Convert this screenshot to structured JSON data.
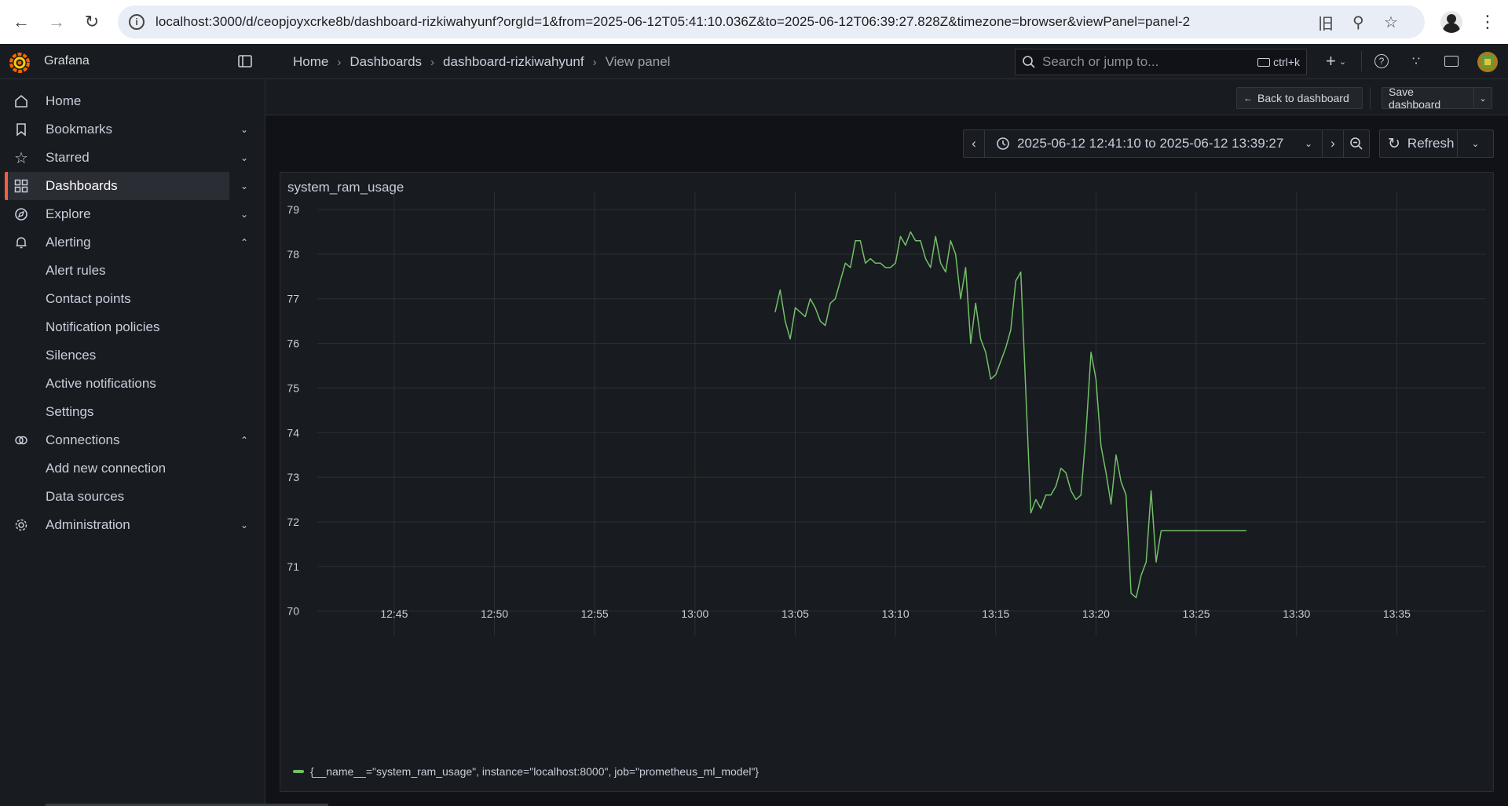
{
  "browser": {
    "url": "localhost:3000/d/ceopjoyxcrke8b/dashboard-rizkiwahyunf?orgId=1&from=2025-06-12T05:41:10.036Z&to=2025-06-12T06:39:27.828Z&timezone=browser&viewPanel=panel-2"
  },
  "app": {
    "name": "Grafana",
    "breadcrumb": [
      "Home",
      "Dashboards",
      "dashboard-rizkiwahyunf",
      "View panel"
    ],
    "search_placeholder": "Search or jump to...",
    "search_shortcut": "ctrl+k"
  },
  "sidebar": {
    "items": [
      {
        "label": "Home",
        "icon": "home-icon"
      },
      {
        "label": "Bookmarks",
        "icon": "bookmark-icon"
      },
      {
        "label": "Starred",
        "icon": "star-icon"
      },
      {
        "label": "Dashboards",
        "icon": "apps-icon"
      },
      {
        "label": "Explore",
        "icon": "compass-icon"
      },
      {
        "label": "Alerting",
        "icon": "bell-icon"
      },
      {
        "label": "Connections",
        "icon": "plug-icon"
      },
      {
        "label": "Administration",
        "icon": "cog-icon"
      }
    ],
    "alerting_sub": [
      "Alert rules",
      "Contact points",
      "Notification policies",
      "Silences",
      "Active notifications",
      "Settings"
    ],
    "connections_sub": [
      "Add new connection",
      "Data sources"
    ]
  },
  "toolbar": {
    "back_label": "Back to dashboard",
    "save_label": "Save dashboard",
    "time_range": "2025-06-12 12:41:10 to 2025-06-12 13:39:27",
    "refresh_label": "Refresh"
  },
  "panel": {
    "title": "system_ram_usage",
    "legend": "{__name__=\"system_ram_usage\", instance=\"localhost:8000\", job=\"prometheus_ml_model\"}"
  },
  "colors": {
    "accent": "#f55f3e",
    "series": "#73bf69"
  },
  "chart_data": {
    "type": "line",
    "title": "system_ram_usage",
    "xlabel": "",
    "ylabel": "",
    "x_range": [
      "12:41:10",
      "13:39:27"
    ],
    "ylim": [
      69.8,
      79.3
    ],
    "y_ticks": [
      70,
      71,
      72,
      73,
      74,
      75,
      76,
      77,
      78,
      79
    ],
    "x_ticks": [
      "12:45",
      "12:50",
      "12:55",
      "13:00",
      "13:05",
      "13:10",
      "13:15",
      "13:20",
      "13:25",
      "13:30",
      "13:35"
    ],
    "grid": true,
    "legend_position": "bottom-left",
    "series": [
      {
        "name": "{__name__=\"system_ram_usage\", instance=\"localhost:8000\", job=\"prometheus_ml_model\"}",
        "points": [
          [
            "13:04:00",
            76.7
          ],
          [
            "13:04:15",
            77.2
          ],
          [
            "13:04:30",
            76.5
          ],
          [
            "13:04:45",
            76.1
          ],
          [
            "13:05:00",
            76.8
          ],
          [
            "13:05:15",
            76.7
          ],
          [
            "13:05:30",
            76.6
          ],
          [
            "13:05:45",
            77.0
          ],
          [
            "13:06:00",
            76.8
          ],
          [
            "13:06:15",
            76.5
          ],
          [
            "13:06:30",
            76.4
          ],
          [
            "13:06:45",
            76.9
          ],
          [
            "13:07:00",
            77.0
          ],
          [
            "13:07:15",
            77.4
          ],
          [
            "13:07:30",
            77.8
          ],
          [
            "13:07:45",
            77.7
          ],
          [
            "13:08:00",
            78.3
          ],
          [
            "13:08:15",
            78.3
          ],
          [
            "13:08:30",
            77.8
          ],
          [
            "13:08:45",
            77.9
          ],
          [
            "13:09:00",
            77.8
          ],
          [
            "13:09:15",
            77.8
          ],
          [
            "13:09:30",
            77.7
          ],
          [
            "13:09:45",
            77.7
          ],
          [
            "13:10:00",
            77.8
          ],
          [
            "13:10:15",
            78.4
          ],
          [
            "13:10:30",
            78.2
          ],
          [
            "13:10:45",
            78.5
          ],
          [
            "13:11:00",
            78.3
          ],
          [
            "13:11:15",
            78.3
          ],
          [
            "13:11:30",
            77.9
          ],
          [
            "13:11:45",
            77.7
          ],
          [
            "13:12:00",
            78.4
          ],
          [
            "13:12:15",
            77.8
          ],
          [
            "13:12:30",
            77.6
          ],
          [
            "13:12:45",
            78.3
          ],
          [
            "13:13:00",
            78.0
          ],
          [
            "13:13:15",
            77.0
          ],
          [
            "13:13:30",
            77.7
          ],
          [
            "13:13:45",
            76.0
          ],
          [
            "13:14:00",
            76.9
          ],
          [
            "13:14:15",
            76.1
          ],
          [
            "13:14:30",
            75.8
          ],
          [
            "13:14:45",
            75.2
          ],
          [
            "13:15:00",
            75.3
          ],
          [
            "13:15:15",
            75.6
          ],
          [
            "13:15:30",
            75.9
          ],
          [
            "13:15:45",
            76.3
          ],
          [
            "13:16:00",
            77.4
          ],
          [
            "13:16:15",
            77.6
          ],
          [
            "13:16:45",
            72.2
          ],
          [
            "13:17:00",
            72.5
          ],
          [
            "13:17:15",
            72.3
          ],
          [
            "13:17:30",
            72.6
          ],
          [
            "13:17:45",
            72.6
          ],
          [
            "13:18:00",
            72.8
          ],
          [
            "13:18:15",
            73.2
          ],
          [
            "13:18:30",
            73.1
          ],
          [
            "13:18:45",
            72.7
          ],
          [
            "13:19:00",
            72.5
          ],
          [
            "13:19:15",
            72.6
          ],
          [
            "13:19:30",
            74.0
          ],
          [
            "13:19:45",
            75.8
          ],
          [
            "13:20:00",
            75.2
          ],
          [
            "13:20:15",
            73.7
          ],
          [
            "13:20:30",
            73.1
          ],
          [
            "13:20:45",
            72.4
          ],
          [
            "13:21:00",
            73.5
          ],
          [
            "13:21:15",
            72.9
          ],
          [
            "13:21:30",
            72.6
          ],
          [
            "13:21:45",
            70.4
          ],
          [
            "13:22:00",
            70.3
          ],
          [
            "13:22:15",
            70.8
          ],
          [
            "13:22:30",
            71.1
          ],
          [
            "13:22:45",
            72.7
          ],
          [
            "13:23:00",
            71.1
          ],
          [
            "13:23:15",
            71.8
          ],
          [
            "13:27:30",
            71.8
          ]
        ]
      }
    ]
  }
}
